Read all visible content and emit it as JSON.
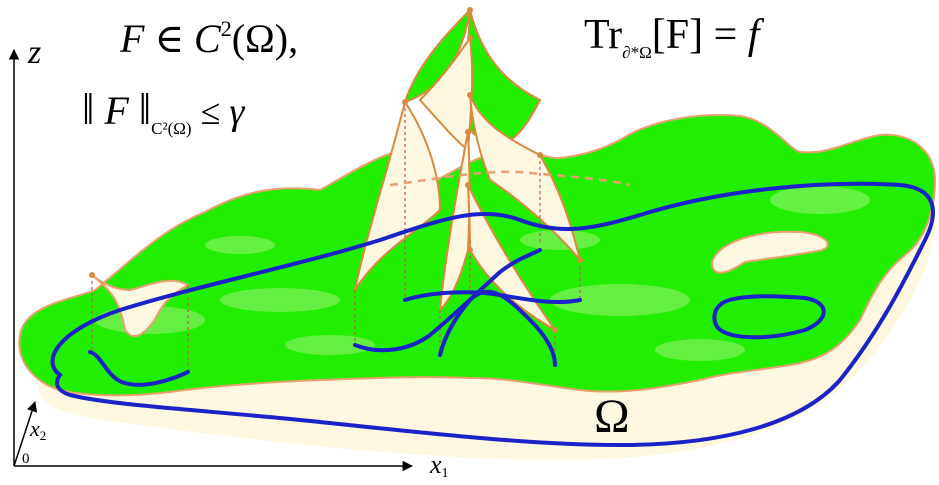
{
  "labels": {
    "axis_z": "z",
    "axis_x1": "x",
    "axis_x1_sub": "1",
    "axis_x2": "x",
    "axis_x2_sub": "2",
    "origin": "0",
    "domain": "Ω"
  },
  "formulas": {
    "regularity_F": "F",
    "regularity_in": " ∈ ",
    "regularity_C": "C",
    "regularity_C_sup": "2",
    "regularity_Omega": "(Ω),",
    "norm_open": "‖",
    "norm_F": " F ",
    "norm_close": "‖",
    "norm_sub": "C²(Ω)",
    "norm_leq": " ≤ ",
    "norm_gamma": "γ",
    "trace_Tr": "Tr",
    "trace_sub": "∂*Ω",
    "trace_arg": "[F]",
    "trace_eq": " = ",
    "trace_f": "f"
  },
  "colors": {
    "surface_green": "#22ee00",
    "surface_light": "#7cf05a",
    "surface_edge": "#e8a070",
    "domain_fill": "#fdf8df",
    "boundary_blue": "#1a22c8",
    "axis": "#000000",
    "peak_dot": "#d98a40"
  }
}
